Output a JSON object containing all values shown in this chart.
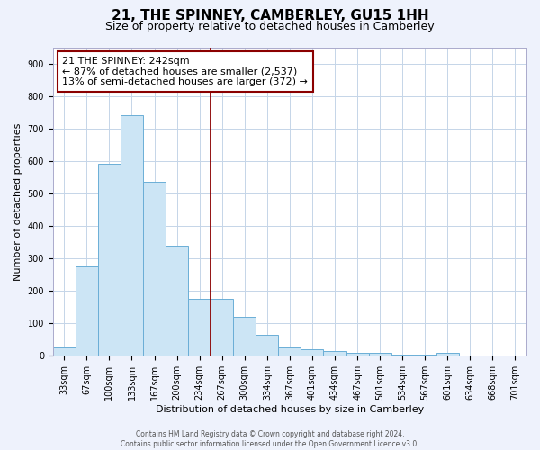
{
  "title": "21, THE SPINNEY, CAMBERLEY, GU15 1HH",
  "subtitle": "Size of property relative to detached houses in Camberley",
  "xlabel": "Distribution of detached houses by size in Camberley",
  "ylabel": "Number of detached properties",
  "bin_labels": [
    "33sqm",
    "67sqm",
    "100sqm",
    "133sqm",
    "167sqm",
    "200sqm",
    "234sqm",
    "267sqm",
    "300sqm",
    "334sqm",
    "367sqm",
    "401sqm",
    "434sqm",
    "467sqm",
    "501sqm",
    "534sqm",
    "567sqm",
    "601sqm",
    "634sqm",
    "668sqm",
    "701sqm"
  ],
  "bar_heights": [
    25,
    275,
    590,
    740,
    535,
    340,
    175,
    175,
    120,
    65,
    25,
    20,
    15,
    10,
    8,
    5,
    5,
    8,
    2,
    0,
    0
  ],
  "bar_color": "#cce5f5",
  "bar_edge_color": "#6baed6",
  "ylim": [
    0,
    950
  ],
  "yticks": [
    0,
    100,
    200,
    300,
    400,
    500,
    600,
    700,
    800,
    900
  ],
  "property_line_x": 7.0,
  "property_line_color": "#8B0000",
  "annotation_line1": "21 THE SPINNEY: 242sqm",
  "annotation_line2": "← 87% of detached houses are smaller (2,537)",
  "annotation_line3": "13% of semi-detached houses are larger (372) →",
  "annotation_box_color": "#8B0000",
  "annotation_text_color": "#000000",
  "footer_line1": "Contains HM Land Registry data © Crown copyright and database right 2024.",
  "footer_line2": "Contains public sector information licensed under the Open Government Licence v3.0.",
  "background_color": "#eef2fc",
  "plot_background_color": "#ffffff",
  "grid_color": "#c5d5e8",
  "title_fontsize": 11,
  "subtitle_fontsize": 9,
  "annotation_fontsize": 8,
  "ylabel_fontsize": 8,
  "xlabel_fontsize": 8,
  "tick_fontsize": 7
}
